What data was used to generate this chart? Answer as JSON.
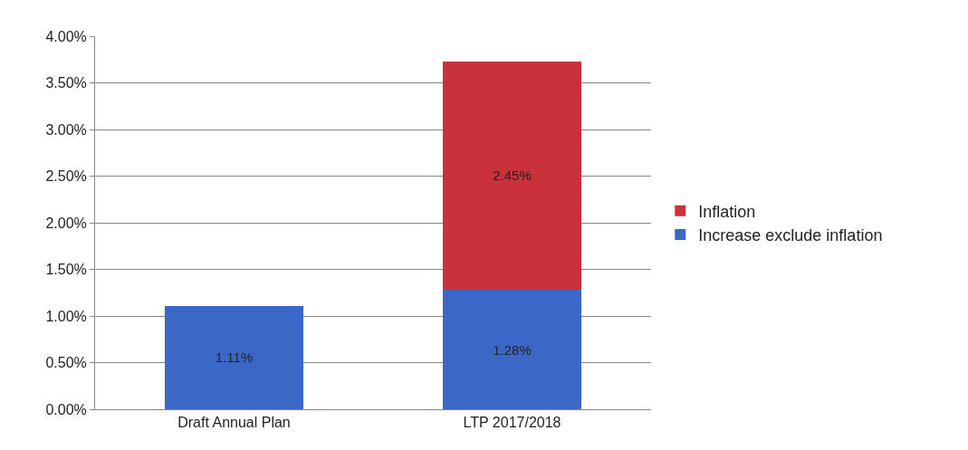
{
  "chart_data": {
    "type": "bar",
    "stacked": true,
    "categories": [
      "Draft Annual Plan",
      "LTP 2017/2018"
    ],
    "series": [
      {
        "name": "Increase exclude inflation",
        "color": "#3b67c6",
        "values": [
          1.11,
          1.28
        ],
        "value_labels": [
          "1.11%",
          "1.28%"
        ]
      },
      {
        "name": "Inflation",
        "color": "#c9323a",
        "values": [
          null,
          2.45
        ],
        "value_labels": [
          null,
          "2.45%"
        ]
      }
    ],
    "ylim": [
      0,
      4
    ],
    "yticks": [
      {
        "value": 0,
        "label": "0.00%"
      },
      {
        "value": 0.5,
        "label": "0.50%"
      },
      {
        "value": 1,
        "label": "1.00%"
      },
      {
        "value": 1.5,
        "label": "1.50%"
      },
      {
        "value": 2,
        "label": "2.00%"
      },
      {
        "value": 2.5,
        "label": "2.50%"
      },
      {
        "value": 3,
        "label": "3.00%"
      },
      {
        "value": 3.5,
        "label": "3.50%"
      },
      {
        "value": 4,
        "label": "4.00%"
      }
    ],
    "grid": "y",
    "legend": "right"
  }
}
